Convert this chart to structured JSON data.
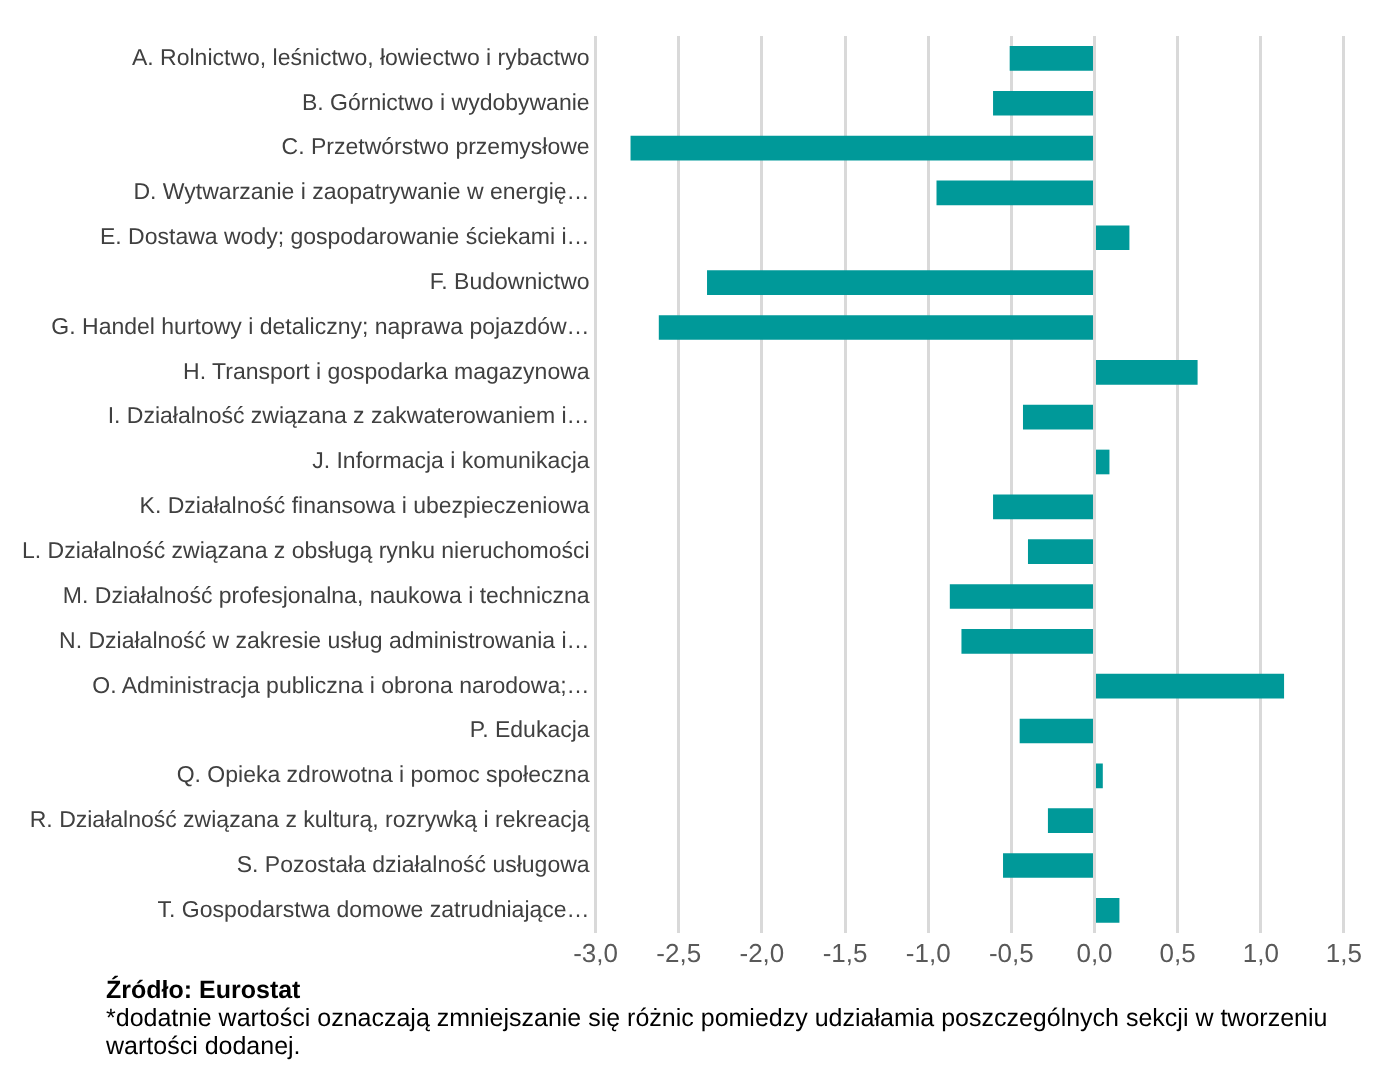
{
  "chart_data": {
    "type": "bar",
    "orientation": "horizontal",
    "categories": [
      "A. Rolnictwo, leśnictwo, łowiectwo i rybactwo",
      "B. Górnictwo i wydobywanie",
      "C. Przetwórstwo przemysłowe",
      "D. Wytwarzanie i zaopatrywanie w energię…",
      "E. Dostawa wody; gospodarowanie ściekami i…",
      "F. Budownictwo",
      "G. Handel hurtowy i detaliczny; naprawa pojazdów…",
      "H. Transport i gospodarka magazynowa",
      "I. Działalność związana z zakwaterowaniem i…",
      "J. Informacja i komunikacja",
      "K. Działalność finansowa i ubezpieczeniowa",
      "L. Działalność związana z obsługą rynku nieruchomości",
      "M. Działalność profesjonalna, naukowa i techniczna",
      "N. Działalność w zakresie usług administrowania i…",
      "O. Administracja publiczna i obrona narodowa;…",
      "P. Edukacja",
      "Q. Opieka zdrowotna i pomoc społeczna",
      "R. Działalność związana z kulturą, rozrywką i rekreacją",
      "S. Pozostała działalność usługowa",
      "T. Gospodarstwa domowe zatrudniające…"
    ],
    "values": [
      -0.51,
      -0.61,
      -2.79,
      -0.95,
      0.21,
      -2.33,
      -2.62,
      0.62,
      -0.43,
      0.09,
      -0.61,
      -0.4,
      -0.87,
      -0.8,
      1.14,
      -0.45,
      0.05,
      -0.28,
      -0.55,
      0.15
    ],
    "color": "#009999",
    "xlim": [
      -3,
      1.5
    ],
    "xticks": [
      {
        "value": -3,
        "label": "-3,0"
      },
      {
        "value": -2.5,
        "label": "-2,5"
      },
      {
        "value": -2,
        "label": "-2,0"
      },
      {
        "value": -1.5,
        "label": "-1,5"
      },
      {
        "value": -1,
        "label": "-1,0"
      },
      {
        "value": -0.5,
        "label": "-0,5"
      },
      {
        "value": 0,
        "label": "0,0"
      },
      {
        "value": 0.5,
        "label": "0,5"
      },
      {
        "value": 1,
        "label": "1,0"
      },
      {
        "value": 1.5,
        "label": "1,5"
      }
    ],
    "grid": "x",
    "annotations": [
      "Źródło: Eurostat",
      "*dodatnie wartości oznaczają zmniejszanie się różnic pomiedzy udziałamia poszczególnych sekcji w tworzeniu wartości dodanej."
    ]
  }
}
